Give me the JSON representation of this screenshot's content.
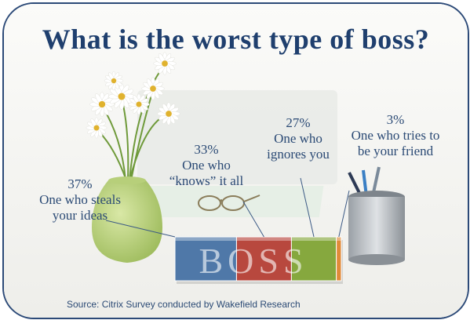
{
  "title": "What is the worst type of boss?",
  "source": "Source: Citrix Survey conducted by Wakefield Research",
  "chart_data": {
    "type": "bar",
    "orientation": "horizontal-stacked",
    "title": "What is the worst type of boss?",
    "bar_text": "BOSS",
    "categories": [
      "One who steals your ideas",
      "One who “knows” it all",
      "One who ignores you",
      "One who tries to be your friend"
    ],
    "values": [
      37,
      33,
      27,
      3
    ],
    "value_labels": [
      "37%",
      "33%",
      "27%",
      "3%"
    ],
    "label_lines": [
      [
        "One who steals",
        "your ideas"
      ],
      [
        "One who",
        "“knows” it all"
      ],
      [
        "One who",
        "ignores you"
      ],
      [
        "One who tries to",
        "be your friend"
      ]
    ],
    "colors": [
      "#4f78a8",
      "#b8483e",
      "#86a83e",
      "#e08a38"
    ],
    "unit": "%"
  }
}
